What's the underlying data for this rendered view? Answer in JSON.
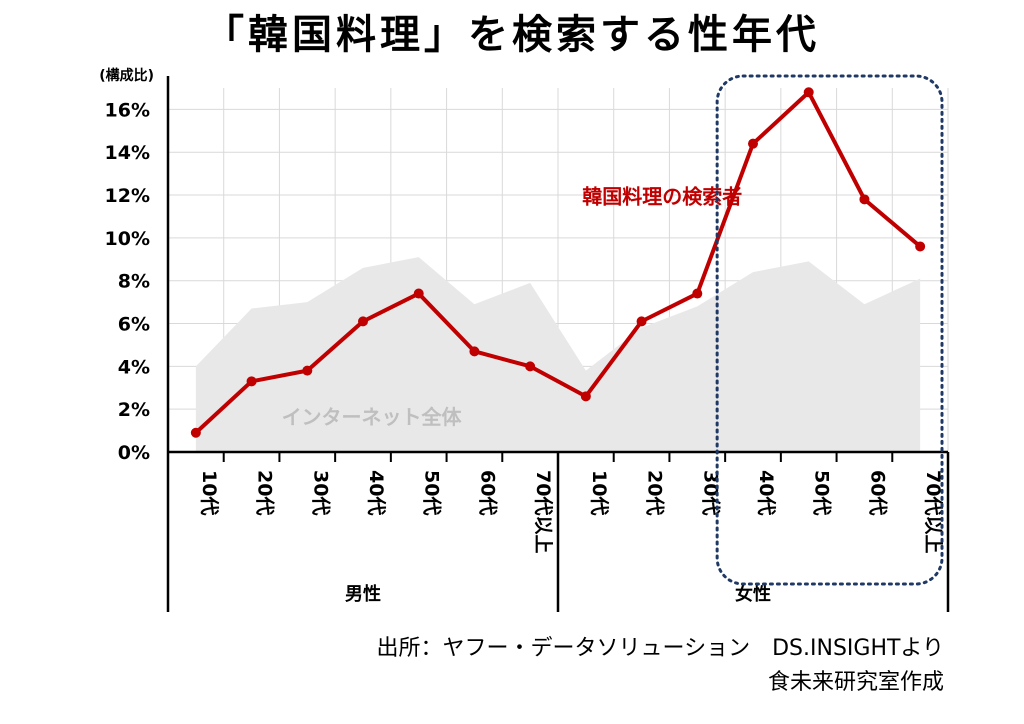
{
  "title": "「韓国料理」を検索する性年代",
  "source": {
    "line1": "出所：ヤフー・データソリューション　DS.INSIGHTより",
    "line2": "食未来研究室作成"
  },
  "chart_data": {
    "type": "line",
    "ylabel": "(構成比)",
    "ylim": [
      0,
      17
    ],
    "yticks": [
      0,
      2,
      4,
      6,
      8,
      10,
      12,
      14,
      16
    ],
    "ytick_labels": [
      "0%",
      "2%",
      "4%",
      "6%",
      "8%",
      "10%",
      "12%",
      "14%",
      "16%"
    ],
    "categories": [
      "10代",
      "20代",
      "30代",
      "40代",
      "50代",
      "60代",
      "70代以上",
      "10代",
      "20代",
      "30代",
      "40代",
      "50代",
      "60代",
      "70代以上"
    ],
    "groups": [
      {
        "label": "男性",
        "count": 7
      },
      {
        "label": "女性",
        "count": 7
      }
    ],
    "series": [
      {
        "name": "韓国料理の検索者",
        "kind": "line",
        "color": "#c00000",
        "values": [
          0.9,
          3.3,
          3.8,
          6.1,
          7.4,
          4.7,
          4.0,
          2.6,
          6.1,
          7.4,
          14.4,
          16.8,
          11.8,
          9.6
        ]
      },
      {
        "name": "インターネット全体",
        "kind": "area",
        "color": "#e8e8e8",
        "values": [
          4.0,
          6.7,
          7.0,
          8.6,
          9.1,
          6.9,
          7.9,
          3.8,
          5.8,
          6.8,
          8.4,
          8.9,
          6.9,
          8.1
        ]
      }
    ],
    "highlight": {
      "group": "女性",
      "from_index": 10,
      "to_index": 13,
      "style": "dotted-rounded-box",
      "color": "#1f3864"
    },
    "grid": true
  }
}
